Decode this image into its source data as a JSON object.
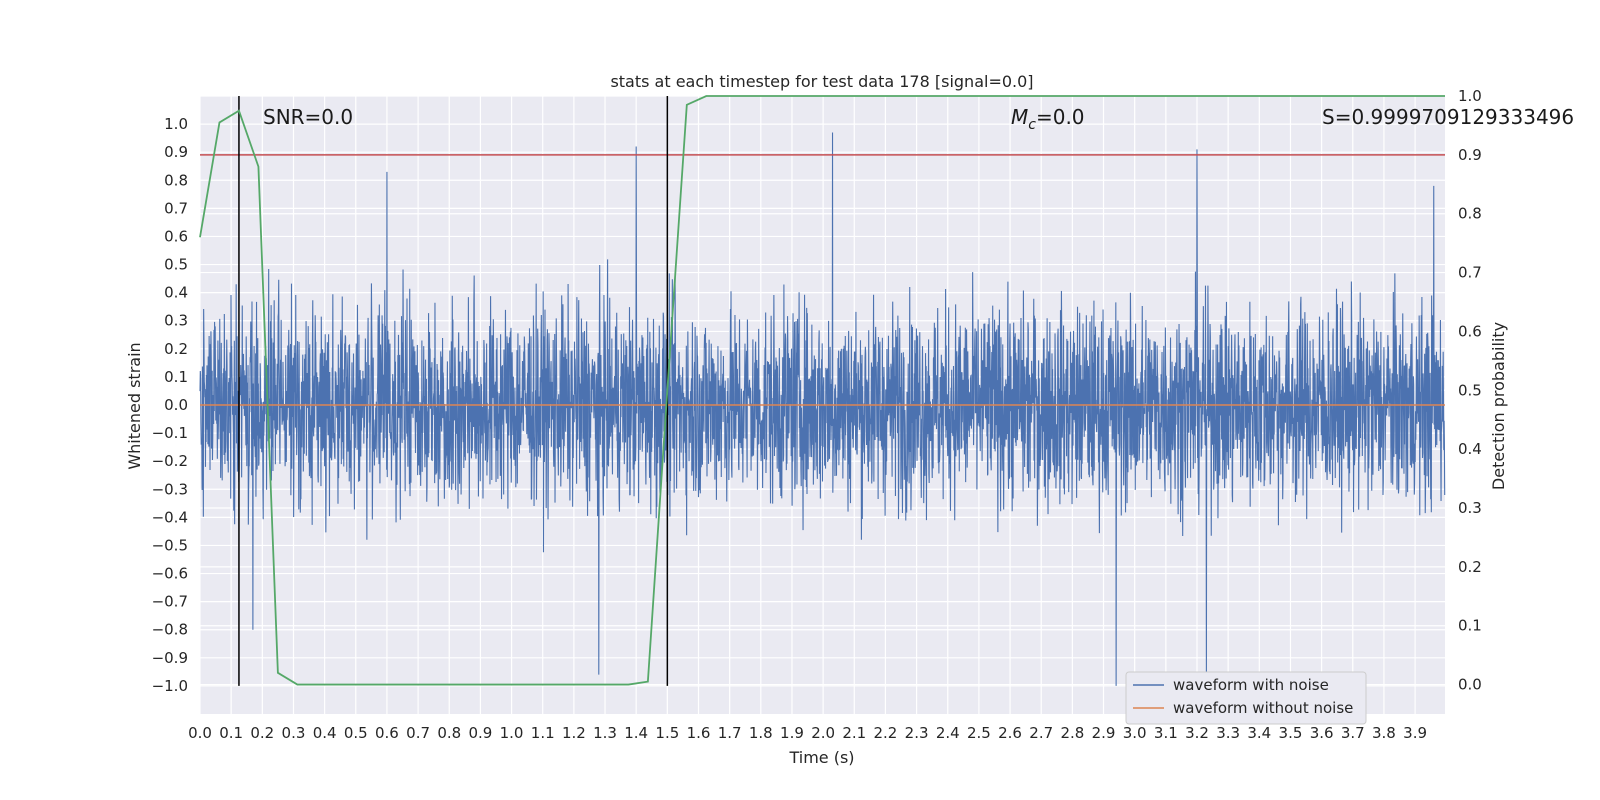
{
  "chart_data": {
    "type": "line",
    "title": "stats at each timestep for test data 178 [signal=0.0]",
    "xlabel": "Time (s)",
    "ylabel": "Whitened strain",
    "y2label": "Detection probability",
    "xlim": [
      0.0,
      3.996
    ],
    "ylim": [
      -1.1,
      1.1
    ],
    "y2lim": [
      -0.05,
      1.0
    ],
    "xticks": [
      "0.0",
      "0.1",
      "0.2",
      "0.3",
      "0.4",
      "0.5",
      "0.6",
      "0.7",
      "0.8",
      "0.9",
      "1.0",
      "1.1",
      "1.2",
      "1.3",
      "1.4",
      "1.5",
      "1.6",
      "1.7",
      "1.8",
      "1.9",
      "2.0",
      "2.1",
      "2.2",
      "2.3",
      "2.4",
      "2.5",
      "2.6",
      "2.7",
      "2.8",
      "2.9",
      "3.0",
      "3.1",
      "3.2",
      "3.3",
      "3.4",
      "3.5",
      "3.6",
      "3.7",
      "3.8",
      "3.9"
    ],
    "yticks": [
      "1.0",
      "0.9",
      "0.8",
      "0.7",
      "0.6",
      "0.5",
      "0.4",
      "0.3",
      "0.2",
      "0.1",
      "0.0",
      "−0.1",
      "−0.2",
      "−0.3",
      "−0.4",
      "−0.5",
      "−0.6",
      "−0.7",
      "−0.8",
      "−0.9",
      "−1.0"
    ],
    "y2ticks": [
      "1.0",
      "0.9",
      "0.8",
      "0.7",
      "0.6",
      "0.5",
      "0.4",
      "0.3",
      "0.2",
      "0.1",
      "0.0"
    ],
    "grid": true,
    "legend_position": "lower-right",
    "annotations": {
      "snr": "SNR=0.0",
      "mc_symbol": "M",
      "mc_subscript": "c",
      "mc_value": "=0.0",
      "s": "S=0.9999709129333496"
    },
    "series": [
      {
        "name": "waveform with noise",
        "color": "#4c72b0",
        "note_values": "dense random noise, amplitude roughly within -1.0 to 1.0",
        "spikes": [
          {
            "x": 0.6,
            "y": 0.83
          },
          {
            "x": 1.4,
            "y": 0.92
          },
          {
            "x": 2.03,
            "y": 0.97
          },
          {
            "x": 3.2,
            "y": 0.91
          },
          {
            "x": 3.96,
            "y": 0.78
          },
          {
            "x": 1.28,
            "y": -0.96
          },
          {
            "x": 2.94,
            "y": -1.0
          },
          {
            "x": 3.23,
            "y": -0.96
          },
          {
            "x": 0.17,
            "y": -0.8
          }
        ]
      },
      {
        "name": "waveform without noise",
        "color": "#dd8452",
        "x": [
          0.0,
          3.996
        ],
        "y": [
          0.0,
          0.0
        ]
      },
      {
        "name": "detection probability",
        "color": "#55a868",
        "axis": "right",
        "x": [
          0.0,
          0.0625,
          0.125,
          0.1875,
          0.25,
          0.3125,
          1.375,
          1.4375,
          1.5,
          1.5625,
          1.625,
          3.996
        ],
        "y": [
          0.76,
          0.955,
          0.975,
          0.88,
          0.02,
          0.0,
          0.0,
          0.005,
          0.5,
          0.985,
          1.0,
          1.0
        ]
      }
    ],
    "threshold": {
      "y2": 0.9,
      "color": "#c44e52"
    },
    "vlines": [
      {
        "x": 0.125,
        "color": "#000000"
      },
      {
        "x": 1.5,
        "color": "#000000"
      }
    ]
  }
}
